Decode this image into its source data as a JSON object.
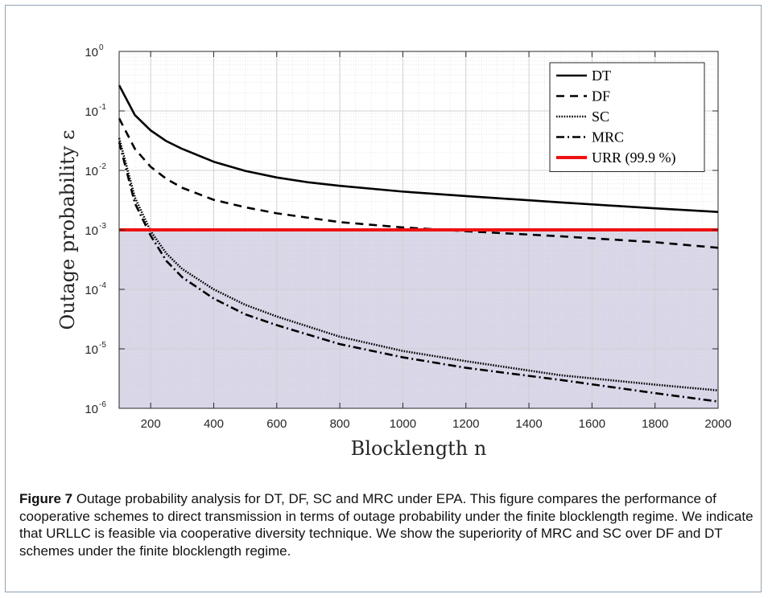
{
  "figure": {
    "label": "Figure 7",
    "caption": "Outage probability analysis for DT, DF, SC and MRC under EPA. This figure compares the performance of cooperative schemes to direct transmission in terms of outage probability under the finite blocklength regime. We indicate that URLLC is feasible via cooperative diversity technique. We show the superiority of MRC and SC over DF and DT schemes under the finite blocklength regime."
  },
  "colors": {
    "shade": "#d9d6e8",
    "urr": "#ee1111",
    "series": "#000000",
    "grid": "#d0d0d0"
  },
  "chart_data": {
    "type": "line",
    "title": "",
    "xlabel": "Blocklength n",
    "ylabel": "Outage probability ε",
    "xlim": [
      100,
      2000
    ],
    "ylim": [
      1e-06,
      1
    ],
    "yscale": "log",
    "grid": true,
    "legend_position": "top-right",
    "xticks": [
      200,
      400,
      600,
      800,
      1000,
      1200,
      1400,
      1600,
      1800,
      2000
    ],
    "yticks": [
      {
        "base": "10",
        "exp": "0",
        "value": 1
      },
      {
        "base": "10",
        "exp": "-1",
        "value": 0.1
      },
      {
        "base": "10",
        "exp": "-2",
        "value": 0.01
      },
      {
        "base": "10",
        "exp": "-3",
        "value": 0.001
      },
      {
        "base": "10",
        "exp": "-4",
        "value": 0.0001
      },
      {
        "base": "10",
        "exp": "-5",
        "value": 1e-05
      },
      {
        "base": "10",
        "exp": "-6",
        "value": 1e-06
      }
    ],
    "shaded_region": {
      "from": 1e-06,
      "to": 0.001
    },
    "series": [
      {
        "name": "DT",
        "dash": "solid",
        "x": [
          100,
          150,
          200,
          250,
          300,
          400,
          500,
          600,
          700,
          800,
          1000,
          1200,
          1500,
          1800,
          2000
        ],
        "y": [
          0.27,
          0.085,
          0.047,
          0.031,
          0.023,
          0.014,
          0.0098,
          0.0076,
          0.0063,
          0.0055,
          0.0044,
          0.0037,
          0.0029,
          0.0023,
          0.002
        ]
      },
      {
        "name": "DF",
        "dash": "dashed",
        "x": [
          100,
          150,
          200,
          250,
          300,
          400,
          500,
          600,
          700,
          800,
          1000,
          1200,
          1500,
          1800,
          2000
        ],
        "y": [
          0.075,
          0.023,
          0.0115,
          0.0072,
          0.0051,
          0.0032,
          0.0024,
          0.0019,
          0.0016,
          0.00135,
          0.0011,
          0.00095,
          0.00078,
          0.00062,
          0.0005
        ]
      },
      {
        "name": "SC",
        "dash": "dotted",
        "x": [
          100,
          150,
          200,
          250,
          300,
          400,
          500,
          600,
          800,
          1000,
          1200,
          1500,
          1800,
          2000
        ],
        "y": [
          0.035,
          0.0035,
          0.00095,
          0.0004,
          0.00022,
          0.0001,
          5.5e-05,
          3.5e-05,
          1.6e-05,
          9.2e-06,
          6.2e-06,
          3.6e-06,
          2.5e-06,
          2e-06
        ]
      },
      {
        "name": "MRC",
        "dash": "dashdot",
        "x": [
          100,
          150,
          200,
          250,
          300,
          400,
          500,
          600,
          800,
          1000,
          1200,
          1500,
          1800,
          2000
        ],
        "y": [
          0.03,
          0.0028,
          0.0008,
          0.0003,
          0.00016,
          7e-05,
          3.8e-05,
          2.5e-05,
          1.2e-05,
          7.2e-06,
          4.8e-06,
          3e-06,
          1.8e-06,
          1.3e-06
        ]
      },
      {
        "name": "URR (99.9 %)",
        "dash": "solid-red",
        "x": [
          100,
          2000
        ],
        "y": [
          0.001,
          0.001
        ]
      }
    ]
  }
}
